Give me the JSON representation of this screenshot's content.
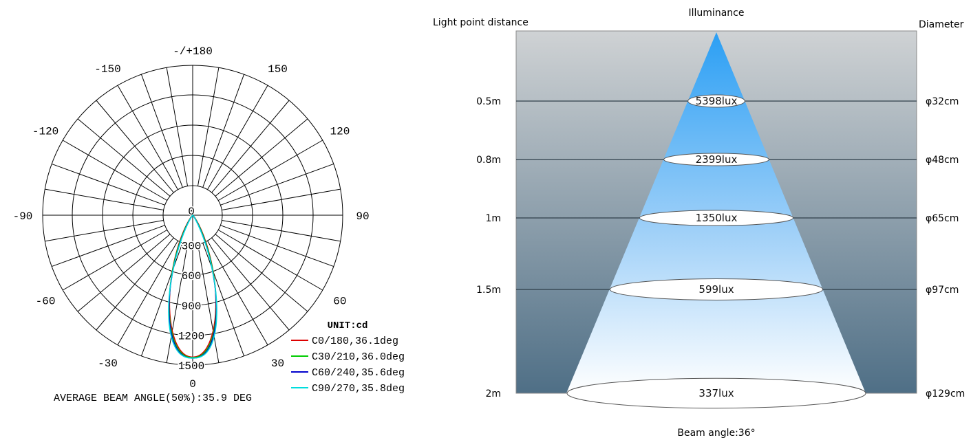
{
  "chart_data": [
    {
      "type": "polar",
      "angle_labels": [
        {
          "text": "-/+180",
          "deg": 180
        },
        {
          "text": "150",
          "deg": 150
        },
        {
          "text": "-150",
          "deg": -150
        },
        {
          "text": "120",
          "deg": 120
        },
        {
          "text": "-120",
          "deg": -120
        },
        {
          "text": "90",
          "deg": 90
        },
        {
          "text": "-90",
          "deg": -90
        },
        {
          "text": "60",
          "deg": 60
        },
        {
          "text": "-60",
          "deg": -60
        },
        {
          "text": "30",
          "deg": 30
        },
        {
          "text": "-30",
          "deg": -30
        },
        {
          "text": "0",
          "deg": 0
        }
      ],
      "radial_ticks": [
        0,
        300,
        600,
        900,
        1200,
        1500
      ],
      "rlim": [
        0,
        1500
      ],
      "unit_label": "UNIT:cd",
      "series": [
        {
          "name": "C0/180,36.1deg",
          "color": "#dd0000",
          "beam_angle": 36.1,
          "peak": 1420
        },
        {
          "name": "C30/210,36.0deg",
          "color": "#00cc00",
          "beam_angle": 36.0,
          "peak": 1425
        },
        {
          "name": "C60/240,35.6deg",
          "color": "#0000cc",
          "beam_angle": 35.6,
          "peak": 1430
        },
        {
          "name": "C90/270,35.8deg",
          "color": "#00dddd",
          "beam_angle": 35.8,
          "peak": 1430
        }
      ],
      "caption": "AVERAGE BEAM ANGLE(50%):35.9 DEG"
    },
    {
      "type": "table",
      "header_left": "Light point distance",
      "header_center": "Illuminance",
      "header_right": "Diameter",
      "footer": "Beam angle:36°",
      "rows": [
        {
          "distance": "0.5m",
          "distance_m": 0.5,
          "illuminance": "5398lux",
          "diameter": "φ32cm",
          "diameter_cm": 32
        },
        {
          "distance": "0.8m",
          "distance_m": 0.8,
          "illuminance": "2399lux",
          "diameter": "φ48cm",
          "diameter_cm": 48
        },
        {
          "distance": "1m",
          "distance_m": 1.0,
          "illuminance": "1350lux",
          "diameter": "φ65cm",
          "diameter_cm": 65
        },
        {
          "distance": "1.5m",
          "distance_m": 1.5,
          "illuminance": "599lux",
          "diameter": "φ97cm",
          "diameter_cm": 97
        },
        {
          "distance": "2m",
          "distance_m": 2.0,
          "illuminance": "337lux",
          "diameter": "φ129cm",
          "diameter_cm": 129
        }
      ]
    }
  ]
}
